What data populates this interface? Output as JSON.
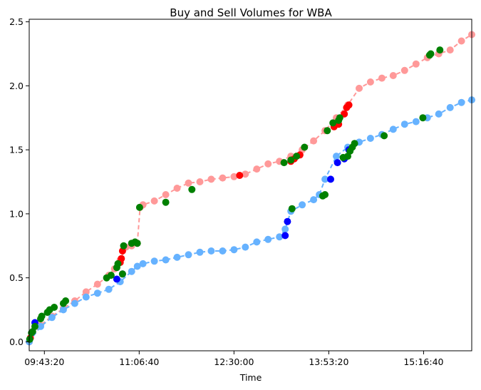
{
  "chart_data": {
    "type": "scatter",
    "title": "Buy and Sell Volumes for WBA",
    "xlabel": "Time",
    "ylabel": "",
    "x_format": "HH:MM:SS",
    "xlim": [
      "09:30:00",
      "15:59:00"
    ],
    "ylim": [
      -0.07,
      2.52
    ],
    "x_ticks": [
      "09:43:20",
      "11:06:40",
      "12:30:00",
      "13:53:20",
      "15:16:40"
    ],
    "y_ticks": [
      0.0,
      0.5,
      1.0,
      1.5,
      2.0,
      2.5
    ],
    "y_tick_labels": [
      "0.0",
      "0.5",
      "1.0",
      "1.5",
      "2.0",
      "2.5"
    ],
    "grid": false,
    "legend": "none",
    "series": [
      {
        "color": "#ff9999",
        "line_style": "dashed",
        "marker_color": "#ff9999",
        "x": [
          "09:30:00",
          "09:40:00",
          "09:50:00",
          "10:00:00",
          "10:10:00",
          "10:20:00",
          "10:30:00",
          "10:40:00",
          "10:45:00",
          "10:50:00",
          "10:55:00",
          "11:00:00",
          "11:05:00",
          "11:07:30",
          "11:10:00",
          "11:20:00",
          "11:30:00",
          "11:40:00",
          "11:50:00",
          "12:00:00",
          "12:10:00",
          "12:20:00",
          "12:30:00",
          "12:40:00",
          "12:50:00",
          "13:00:00",
          "13:10:00",
          "13:20:00",
          "13:30:00",
          "13:40:00",
          "13:50:00",
          "14:00:00",
          "14:10:00",
          "14:20:00",
          "14:30:00",
          "14:40:00",
          "14:50:00",
          "15:00:00",
          "15:10:00",
          "15:20:00",
          "15:30:00",
          "15:40:00",
          "15:50:00",
          "15:59:00"
        ],
        "y": [
          0.0,
          0.13,
          0.2,
          0.26,
          0.32,
          0.39,
          0.45,
          0.52,
          0.57,
          0.64,
          0.74,
          0.75,
          0.77,
          1.05,
          1.07,
          1.1,
          1.15,
          1.2,
          1.24,
          1.25,
          1.27,
          1.28,
          1.29,
          1.31,
          1.35,
          1.39,
          1.41,
          1.45,
          1.5,
          1.57,
          1.65,
          1.75,
          1.85,
          1.98,
          2.03,
          2.06,
          2.08,
          2.12,
          2.17,
          2.22,
          2.25,
          2.28,
          2.35,
          2.4
        ]
      },
      {
        "color": "#66b2ff",
        "line_style": "dashed",
        "marker_color": "#66b2ff",
        "x": [
          "09:30:00",
          "09:40:00",
          "09:50:00",
          "10:00:00",
          "10:10:00",
          "10:20:00",
          "10:30:00",
          "10:40:00",
          "10:50:00",
          "11:00:00",
          "11:05:00",
          "11:10:00",
          "11:20:00",
          "11:30:00",
          "11:40:00",
          "11:50:00",
          "12:00:00",
          "12:10:00",
          "12:20:00",
          "12:30:00",
          "12:40:00",
          "12:50:00",
          "13:00:00",
          "13:10:00",
          "13:15:00",
          "13:20:00",
          "13:30:00",
          "13:40:00",
          "13:45:00",
          "13:50:00",
          "14:00:00",
          "14:10:00",
          "14:20:00",
          "14:30:00",
          "14:40:00",
          "14:50:00",
          "15:00:00",
          "15:10:00",
          "15:20:00",
          "15:30:00",
          "15:40:00",
          "15:50:00",
          "15:59:00"
        ],
        "y": [
          0.0,
          0.12,
          0.19,
          0.25,
          0.3,
          0.35,
          0.38,
          0.41,
          0.47,
          0.55,
          0.59,
          0.61,
          0.63,
          0.64,
          0.66,
          0.68,
          0.7,
          0.71,
          0.71,
          0.72,
          0.74,
          0.78,
          0.8,
          0.82,
          0.88,
          1.02,
          1.07,
          1.11,
          1.15,
          1.27,
          1.45,
          1.52,
          1.56,
          1.59,
          1.62,
          1.66,
          1.7,
          1.72,
          1.75,
          1.78,
          1.83,
          1.87,
          1.89
        ]
      },
      {
        "color": "#ff0000",
        "marker_color": "#ff0000",
        "x": [
          "09:31:00",
          "10:50:00",
          "10:51:00",
          "10:52:00",
          "12:35:00",
          "13:20:00",
          "13:23:00",
          "13:28:00",
          "13:58:00",
          "14:02:00",
          "14:07:00",
          "14:09:00",
          "14:11:00"
        ],
        "y": [
          0.03,
          0.62,
          0.65,
          0.71,
          1.3,
          1.41,
          1.43,
          1.46,
          1.68,
          1.7,
          1.78,
          1.83,
          1.85
        ]
      },
      {
        "color": "#0000ff",
        "marker_color": "#0000ff",
        "x": [
          "09:35:00",
          "10:47:00",
          "10:52:00",
          "13:15:00",
          "13:17:00",
          "13:55:00",
          "14:01:00",
          "14:07:00",
          "14:11:00"
        ],
        "y": [
          0.15,
          0.49,
          0.53,
          0.83,
          0.94,
          1.27,
          1.4,
          1.43,
          1.5
        ]
      },
      {
        "color": "#008000",
        "marker_color": "#008000",
        "x": [
          "09:30:30",
          "09:32:00",
          "09:33:00",
          "09:35:00",
          "09:40:00",
          "09:41:00",
          "09:46:00",
          "09:48:00",
          "09:52:00",
          "10:00:00",
          "10:02:00",
          "10:38:00",
          "10:42:00",
          "10:47:00",
          "10:48:00",
          "10:52:00",
          "10:53:00",
          "11:00:00",
          "11:03:00",
          "11:05:00",
          "11:07:00",
          "11:30:00",
          "11:53:00",
          "13:14:00",
          "13:20:00",
          "13:25:00",
          "13:32:00",
          "13:48:00",
          "13:50:00",
          "13:52:00",
          "13:57:00",
          "14:02:00",
          "14:03:00",
          "14:06:00",
          "14:10:00",
          "14:12:00",
          "14:14:00",
          "14:42:00",
          "15:16:00",
          "15:22:00",
          "15:23:00",
          "15:31:00",
          "14:16:00",
          "13:21:00"
        ],
        "y": [
          0.02,
          0.07,
          0.08,
          0.12,
          0.18,
          0.2,
          0.23,
          0.25,
          0.27,
          0.3,
          0.32,
          0.5,
          0.52,
          0.58,
          0.61,
          0.53,
          0.75,
          0.77,
          0.78,
          0.77,
          1.05,
          1.09,
          1.19,
          1.4,
          1.42,
          1.45,
          1.52,
          1.14,
          1.15,
          1.65,
          1.71,
          1.73,
          1.75,
          1.44,
          1.45,
          1.49,
          1.52,
          1.61,
          1.75,
          2.24,
          2.25,
          2.28,
          1.55,
          1.04
        ]
      }
    ]
  }
}
